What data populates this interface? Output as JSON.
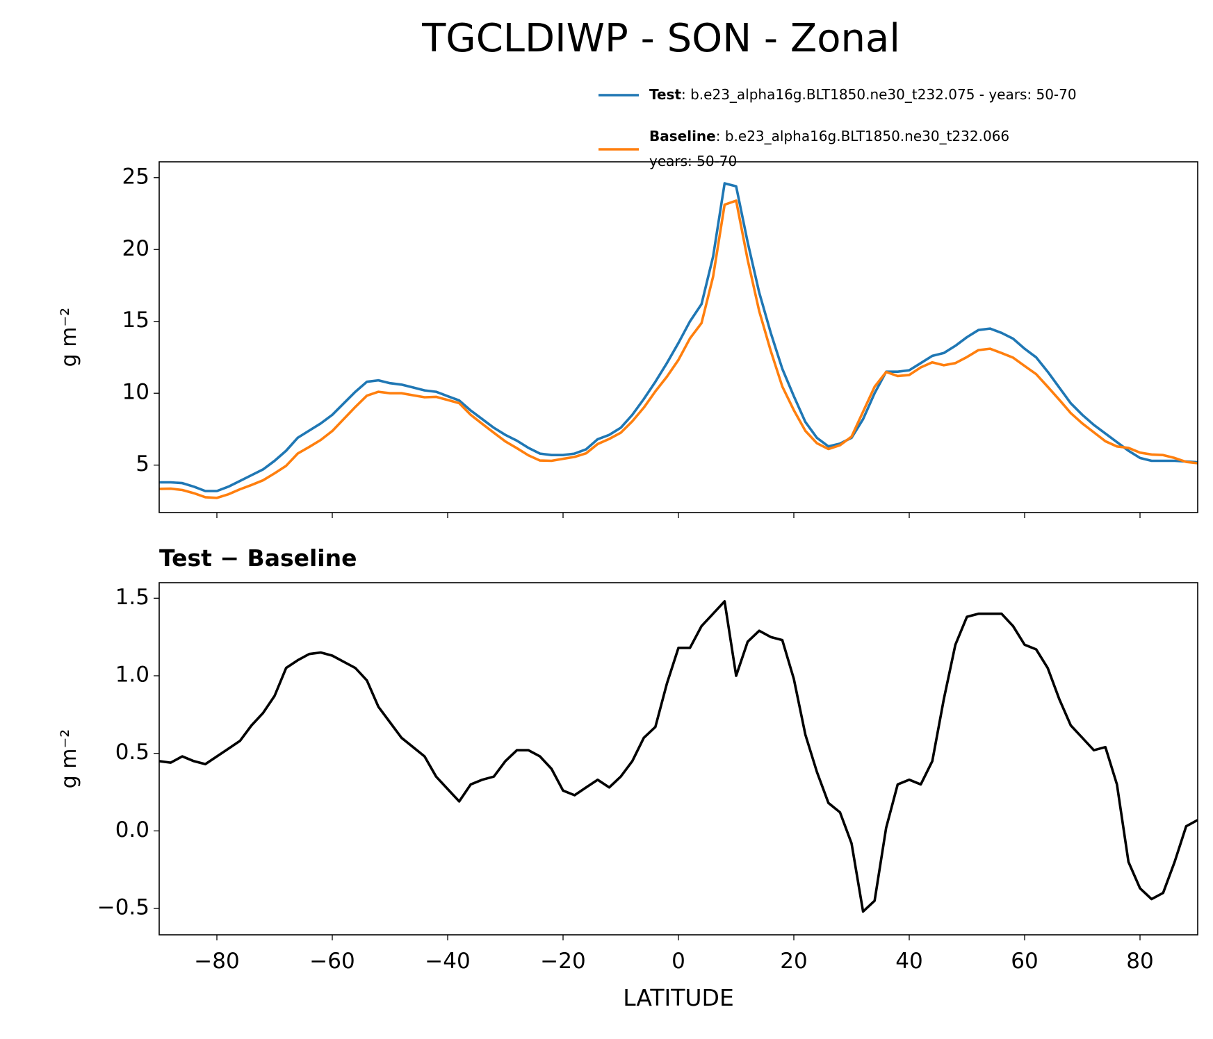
{
  "chart_data": [
    {
      "type": "line",
      "title": "TGCLDIWP - SON - Zonal",
      "ylabel": "g m⁻²",
      "x": [
        -90,
        -88,
        -86,
        -84,
        -82,
        -80,
        -78,
        -76,
        -74,
        -72,
        -70,
        -68,
        -66,
        -64,
        -62,
        -60,
        -58,
        -56,
        -54,
        -52,
        -50,
        -48,
        -46,
        -44,
        -42,
        -40,
        -38,
        -36,
        -34,
        -32,
        -30,
        -28,
        -26,
        -24,
        -22,
        -20,
        -18,
        -16,
        -14,
        -12,
        -10,
        -8,
        -6,
        -4,
        -2,
        0,
        2,
        4,
        6,
        8,
        10,
        12,
        14,
        16,
        18,
        20,
        22,
        24,
        26,
        28,
        30,
        32,
        34,
        36,
        38,
        40,
        42,
        44,
        46,
        48,
        50,
        52,
        54,
        56,
        58,
        60,
        62,
        64,
        66,
        68,
        70,
        72,
        74,
        76,
        78,
        80,
        82,
        84,
        86,
        88,
        90
      ],
      "series": [
        {
          "name": "Test",
          "detail": [
            ": b.e23_alpha16g.BLT1850.ne30_t232.075 - years: 50-70"
          ],
          "color": "#1f77b4",
          "values": [
            3.8,
            3.8,
            3.75,
            3.5,
            3.2,
            3.2,
            3.5,
            3.9,
            4.3,
            4.7,
            5.3,
            6.0,
            6.9,
            7.4,
            7.9,
            8.5,
            9.3,
            10.1,
            10.8,
            10.9,
            10.7,
            10.6,
            10.4,
            10.2,
            10.1,
            9.8,
            9.5,
            8.8,
            8.2,
            7.6,
            7.1,
            6.7,
            6.2,
            5.8,
            5.7,
            5.7,
            5.8,
            6.1,
            6.8,
            7.1,
            7.6,
            8.5,
            9.6,
            10.8,
            12.1,
            13.5,
            15.0,
            16.2,
            19.5,
            24.6,
            24.4,
            20.5,
            17.0,
            14.2,
            11.7,
            9.8,
            8.0,
            6.9,
            6.3,
            6.5,
            6.9,
            8.2,
            10.0,
            11.5,
            11.5,
            11.6,
            12.1,
            12.6,
            12.8,
            13.3,
            13.9,
            14.4,
            14.5,
            14.2,
            13.8,
            13.1,
            12.5,
            11.5,
            10.4,
            9.3,
            8.5,
            7.8,
            7.2,
            6.6,
            6.0,
            5.5,
            5.3,
            5.3,
            5.3,
            5.25,
            5.2
          ]
        },
        {
          "name": "Baseline",
          "detail": [
            ": b.e23_alpha16g.BLT1850.ne30_t232.066",
            "years: 50-70"
          ],
          "color": "#ff7f0e",
          "values": [
            3.35,
            3.36,
            3.27,
            3.05,
            2.77,
            2.72,
            2.97,
            3.32,
            3.62,
            3.94,
            4.43,
            4.95,
            5.8,
            6.26,
            6.75,
            7.37,
            8.21,
            9.05,
            9.83,
            10.1,
            10.0,
            10.0,
            9.86,
            9.72,
            9.75,
            9.53,
            9.31,
            8.5,
            7.87,
            7.25,
            6.65,
            6.18,
            5.68,
            5.32,
            5.3,
            5.44,
            5.57,
            5.82,
            6.47,
            6.82,
            7.25,
            8.05,
            9.0,
            10.13,
            11.15,
            12.32,
            13.82,
            14.88,
            18.1,
            23.12,
            23.4,
            19.28,
            15.71,
            12.95,
            10.47,
            8.82,
            7.38,
            6.52,
            6.12,
            6.38,
            6.98,
            8.72,
            10.45,
            11.48,
            11.2,
            11.27,
            11.8,
            12.15,
            11.95,
            12.1,
            12.52,
            13.0,
            13.1,
            12.8,
            12.48,
            11.9,
            11.33,
            10.45,
            9.55,
            8.62,
            7.9,
            7.28,
            6.66,
            6.3,
            6.2,
            5.87,
            5.74,
            5.7,
            5.5,
            5.22,
            5.13
          ]
        }
      ],
      "xlim": [
        -90,
        90
      ],
      "xticks": [
        -80,
        -60,
        -40,
        -20,
        0,
        20,
        40,
        60,
        80
      ],
      "ylim": [
        1.7,
        26.1
      ],
      "yticks": [
        5,
        10,
        15,
        20,
        25
      ]
    },
    {
      "type": "line",
      "subtitle": "Test − Baseline",
      "ylabel": "g m⁻²",
      "xlabel": "LATITUDE",
      "color": "#000000",
      "x": [
        -90,
        -88,
        -86,
        -84,
        -82,
        -80,
        -78,
        -76,
        -74,
        -72,
        -70,
        -68,
        -66,
        -64,
        -62,
        -60,
        -58,
        -56,
        -54,
        -52,
        -50,
        -48,
        -46,
        -44,
        -42,
        -40,
        -38,
        -36,
        -34,
        -32,
        -30,
        -28,
        -26,
        -24,
        -22,
        -20,
        -18,
        -16,
        -14,
        -12,
        -10,
        -8,
        -6,
        -4,
        -2,
        0,
        2,
        4,
        6,
        8,
        10,
        12,
        14,
        16,
        18,
        20,
        22,
        24,
        26,
        28,
        30,
        32,
        34,
        36,
        38,
        40,
        42,
        44,
        46,
        48,
        50,
        52,
        54,
        56,
        58,
        60,
        62,
        64,
        66,
        68,
        70,
        72,
        74,
        76,
        78,
        80,
        82,
        84,
        86,
        88,
        90
      ],
      "values": [
        0.45,
        0.44,
        0.48,
        0.45,
        0.43,
        0.48,
        0.53,
        0.58,
        0.68,
        0.76,
        0.87,
        1.05,
        1.1,
        1.14,
        1.15,
        1.13,
        1.09,
        1.05,
        0.97,
        0.8,
        0.7,
        0.6,
        0.54,
        0.48,
        0.35,
        0.27,
        0.19,
        0.3,
        0.33,
        0.35,
        0.45,
        0.52,
        0.52,
        0.48,
        0.4,
        0.26,
        0.23,
        0.28,
        0.33,
        0.28,
        0.35,
        0.45,
        0.6,
        0.67,
        0.95,
        1.18,
        1.18,
        1.32,
        1.4,
        1.48,
        1.0,
        1.22,
        1.29,
        1.25,
        1.23,
        0.98,
        0.62,
        0.38,
        0.18,
        0.12,
        -0.08,
        -0.52,
        -0.45,
        0.02,
        0.3,
        0.33,
        0.3,
        0.45,
        0.85,
        1.2,
        1.38,
        1.4,
        1.4,
        1.4,
        1.32,
        1.2,
        1.17,
        1.05,
        0.85,
        0.68,
        0.6,
        0.52,
        0.54,
        0.3,
        -0.2,
        -0.37,
        -0.44,
        -0.4,
        -0.2,
        0.03,
        0.07
      ],
      "xlim": [
        -90,
        90
      ],
      "xticks": [
        {
          "value": -80,
          "label": "−80"
        },
        {
          "value": -60,
          "label": "−60"
        },
        {
          "value": -40,
          "label": "−40"
        },
        {
          "value": -20,
          "label": "−20"
        },
        0,
        20,
        40,
        60,
        80
      ],
      "ylim": [
        -0.67,
        1.6
      ],
      "yticks": [
        {
          "value": -0.5,
          "label": "−0.5"
        },
        {
          "value": 0,
          "label": "0.0"
        },
        0.5,
        {
          "value": 1,
          "label": "1.0"
        },
        1.5
      ]
    }
  ]
}
